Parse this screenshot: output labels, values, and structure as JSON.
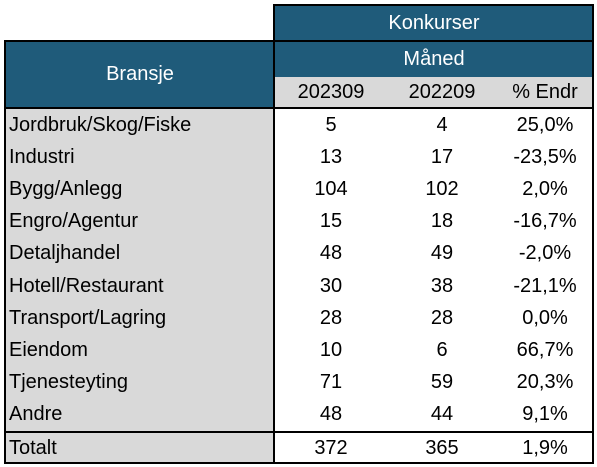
{
  "table": {
    "header_top": "Konkurser",
    "header_month": "Måned",
    "header_category": "Bransje",
    "columns": [
      "202309",
      "202209",
      "% Endr"
    ],
    "rows": [
      {
        "label": "Jordbruk/Skog/Fiske",
        "a": "5",
        "b": "4",
        "pct": "25,0%"
      },
      {
        "label": "Industri",
        "a": "13",
        "b": "17",
        "pct": "-23,5%"
      },
      {
        "label": "Bygg/Anlegg",
        "a": "104",
        "b": "102",
        "pct": "2,0%"
      },
      {
        "label": "Engro/Agentur",
        "a": "15",
        "b": "18",
        "pct": "-16,7%"
      },
      {
        "label": "Detaljhandel",
        "a": "48",
        "b": "49",
        "pct": "-2,0%"
      },
      {
        "label": "Hotell/Restaurant",
        "a": "30",
        "b": "38",
        "pct": "-21,1%"
      },
      {
        "label": "Transport/Lagring",
        "a": "28",
        "b": "28",
        "pct": "0,0%"
      },
      {
        "label": "Eiendom",
        "a": "10",
        "b": "6",
        "pct": "66,7%"
      },
      {
        "label": "Tjenesteyting",
        "a": "71",
        "b": "59",
        "pct": "20,3%"
      },
      {
        "label": "Andre",
        "a": "48",
        "b": "44",
        "pct": "9,1%"
      }
    ],
    "total": {
      "label": "Totalt",
      "a": "372",
      "b": "365",
      "pct": "1,9%"
    }
  }
}
